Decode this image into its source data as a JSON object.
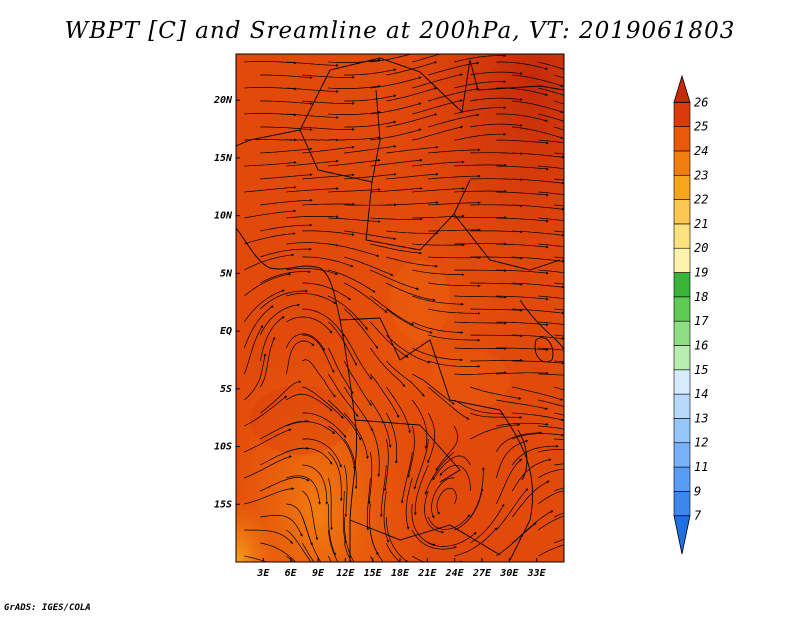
{
  "title": "WBPT [C] and Sreamline at 200hPa, VT: 2019061803",
  "credit": "GrADS: IGES/COLA",
  "map": {
    "lon_range": [
      0,
      36
    ],
    "lat_range": [
      -20,
      24
    ],
    "x_ticks": [
      {
        "value": 3,
        "label": "3E"
      },
      {
        "value": 6,
        "label": "6E"
      },
      {
        "value": 9,
        "label": "9E"
      },
      {
        "value": 12,
        "label": "12E"
      },
      {
        "value": 15,
        "label": "15E"
      },
      {
        "value": 18,
        "label": "18E"
      },
      {
        "value": 21,
        "label": "21E"
      },
      {
        "value": 24,
        "label": "24E"
      },
      {
        "value": 27,
        "label": "27E"
      },
      {
        "value": 30,
        "label": "30E"
      },
      {
        "value": 33,
        "label": "33E"
      }
    ],
    "y_ticks": [
      {
        "value": 20,
        "label": "20N"
      },
      {
        "value": 15,
        "label": "15N"
      },
      {
        "value": 10,
        "label": "10N"
      },
      {
        "value": 5,
        "label": "5N"
      },
      {
        "value": 0,
        "label": "EQ"
      },
      {
        "value": -5,
        "label": "5S"
      },
      {
        "value": -10,
        "label": "10S"
      },
      {
        "value": -15,
        "label": "15S"
      }
    ]
  },
  "colorbar": {
    "labels": [
      "7",
      "9",
      "11",
      "12",
      "13",
      "14",
      "15",
      "16",
      "17",
      "18",
      "19",
      "20",
      "21",
      "22",
      "23",
      "24",
      "25",
      "26"
    ],
    "colors": [
      "#1e6fe0",
      "#3d86ee",
      "#5a9cf5",
      "#78b1f8",
      "#97c5fa",
      "#b6d9fc",
      "#d6ecfe",
      "#b9eeb3",
      "#8fde85",
      "#5fcb55",
      "#3ab33a",
      "#fdf3ad",
      "#fce27e",
      "#fbc752",
      "#f7a51f",
      "#f27d0f",
      "#e85a0a",
      "#d93b0b",
      "#c62a0a"
    ]
  }
}
